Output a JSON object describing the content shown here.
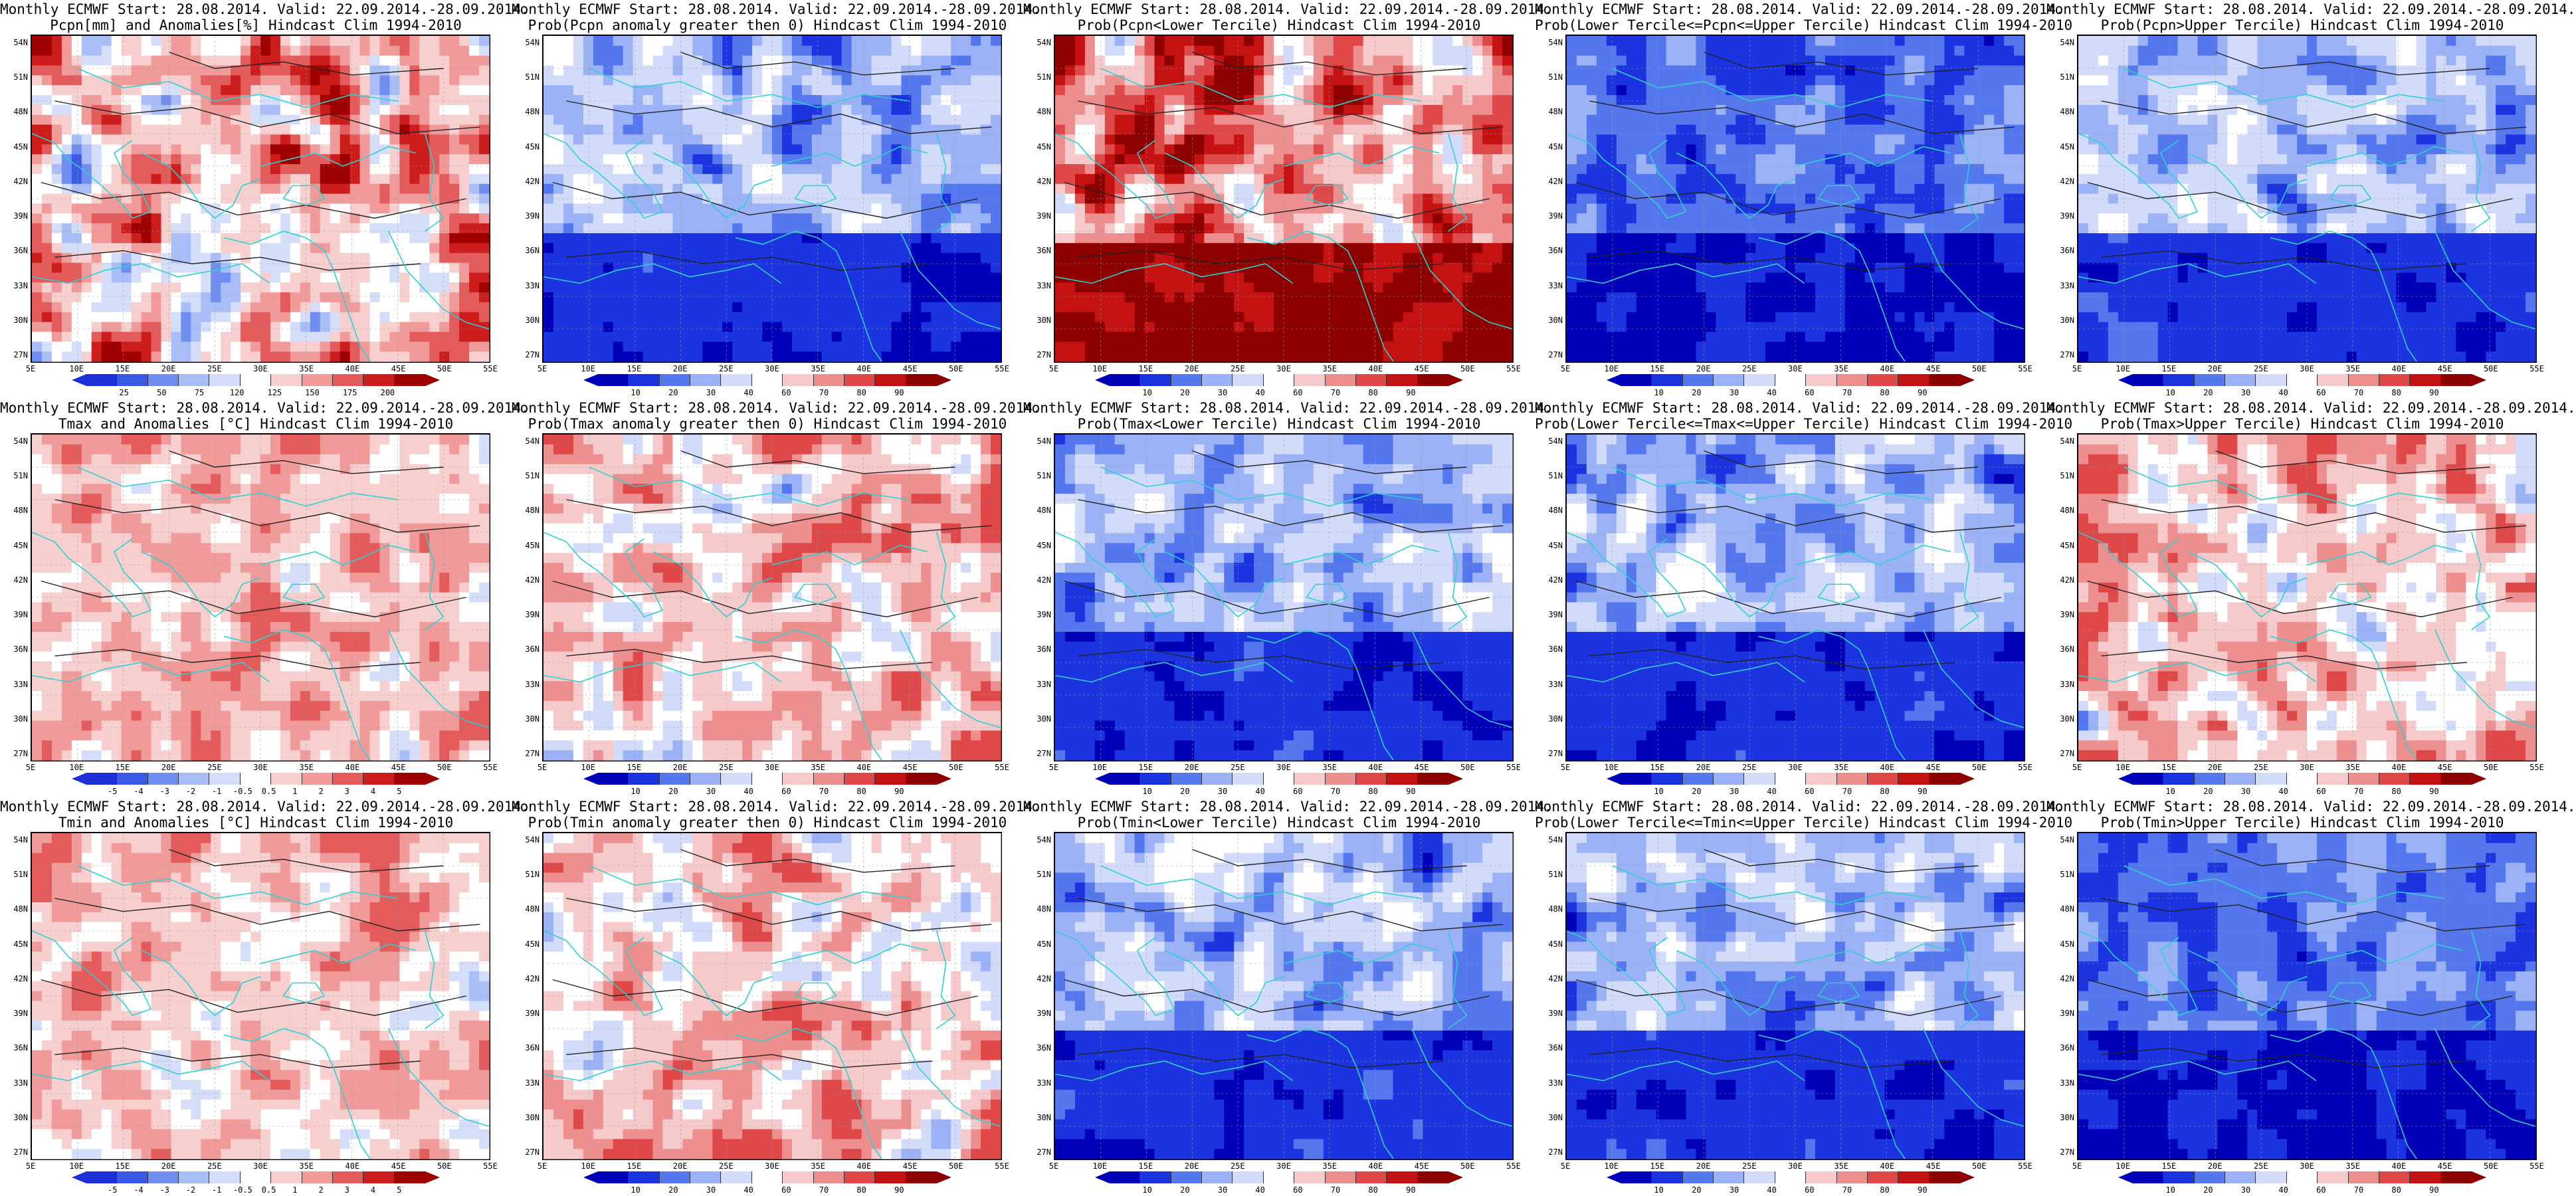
{
  "panels": [
    {
      "row": 0,
      "col": 0,
      "line1": "Monthly ECMWF Start: 28.08.2014. Valid: 22.09.2014.-28.09.2014.",
      "line2": "Pcpn[mm] and Anomalies[%] Hindcast Clim 1994-2010",
      "scheme": "anom-pcpn",
      "ticks": [
        "25",
        "50",
        "75",
        "120",
        "125",
        "150",
        "175",
        "200"
      ],
      "palette": [
        "#1d2fd6",
        "#3a5ae6",
        "#6f8ef0",
        "#a9bdf7",
        "#d4def9",
        "#ffffff",
        "#f7cfcf",
        "#f09a9a",
        "#e35b5b",
        "#cc1d1d",
        "#9e0000"
      ]
    },
    {
      "row": 0,
      "col": 1,
      "line1": "Monthly ECMWF Start: 28.08.2014. Valid: 22.09.2014.-28.09.2014.",
      "line2": "Prob(Pcpn anomaly greater then 0) Hindcast Clim 1994-2010",
      "scheme": "prob-blue",
      "ticks": [
        "10",
        "20",
        "30",
        "40",
        "60",
        "70",
        "80",
        "90"
      ],
      "palette": [
        "#0000b8",
        "#1c34e0",
        "#5577ee",
        "#9bb2f6",
        "#d2dcfa",
        "#ffffff",
        "#f6caca",
        "#ee8f8f",
        "#de4848",
        "#c41212",
        "#8c0000"
      ]
    },
    {
      "row": 0,
      "col": 2,
      "line1": "Monthly ECMWF Start: 28.08.2014. Valid: 22.09.2014.-28.09.2014.",
      "line2": "Prob(Pcpn<Lower Tercile) Hindcast Clim 1994-2010",
      "scheme": "prob-red",
      "ticks": [
        "10",
        "20",
        "30",
        "40",
        "60",
        "70",
        "80",
        "90"
      ],
      "palette": [
        "#0000b8",
        "#1c34e0",
        "#5577ee",
        "#9bb2f6",
        "#d2dcfa",
        "#ffffff",
        "#f6caca",
        "#ee8f8f",
        "#de4848",
        "#c41212",
        "#8c0000"
      ]
    },
    {
      "row": 0,
      "col": 3,
      "line1": "Monthly ECMWF Start: 28.08.2014. Valid: 22.09.2014.-28.09.2014.",
      "line2": "Prob(Lower Tercile<=Pcpn<=Upper Tercile) Hindcast Clim 1994-2010",
      "scheme": "prob-deepblue",
      "ticks": [
        "10",
        "20",
        "30",
        "40",
        "60",
        "70",
        "80",
        "90"
      ],
      "palette": [
        "#0000b8",
        "#1c34e0",
        "#5577ee",
        "#9bb2f6",
        "#d2dcfa",
        "#ffffff",
        "#f6caca",
        "#ee8f8f",
        "#de4848",
        "#c41212",
        "#8c0000"
      ]
    },
    {
      "row": 0,
      "col": 4,
      "line1": "Monthly ECMWF Start: 28.08.2014. Valid: 22.09.2014.-28.09.2014.",
      "line2": "Prob(Pcpn>Upper Tercile) Hindcast Clim 1994-2010",
      "scheme": "prob-blue",
      "ticks": [
        "10",
        "20",
        "30",
        "40",
        "60",
        "70",
        "80",
        "90"
      ],
      "palette": [
        "#0000b8",
        "#1c34e0",
        "#5577ee",
        "#9bb2f6",
        "#d2dcfa",
        "#ffffff",
        "#f6caca",
        "#ee8f8f",
        "#de4848",
        "#c41212",
        "#8c0000"
      ]
    },
    {
      "row": 1,
      "col": 0,
      "line1": "Monthly ECMWF Start: 28.08.2014. Valid: 22.09.2014.-28.09.2014.",
      "line2": "Tmax and Anomalies [°C] Hindcast Clim 1994-2010",
      "scheme": "anom-temp",
      "ticks": [
        "-5",
        "-4",
        "-3",
        "-2",
        "-1",
        "-0.5",
        "0.5",
        "1",
        "2",
        "3",
        "4",
        "5"
      ],
      "palette": [
        "#1d2fd6",
        "#3a5ae6",
        "#6f8ef0",
        "#a9bdf7",
        "#d4def9",
        "#ffffff",
        "#f7cfcf",
        "#f09a9a",
        "#e35b5b",
        "#cc1d1d",
        "#9e0000"
      ]
    },
    {
      "row": 1,
      "col": 1,
      "line1": "Monthly ECMWF Start: 28.08.2014. Valid: 22.09.2014.-28.09.2014.",
      "line2": "Prob(Tmax anomaly greater then 0) Hindcast Clim 1994-2010",
      "scheme": "prob-mixed",
      "ticks": [
        "10",
        "20",
        "30",
        "40",
        "60",
        "70",
        "80",
        "90"
      ],
      "palette": [
        "#0000b8",
        "#1c34e0",
        "#5577ee",
        "#9bb2f6",
        "#d2dcfa",
        "#ffffff",
        "#f6caca",
        "#ee8f8f",
        "#de4848",
        "#c41212",
        "#8c0000"
      ]
    },
    {
      "row": 1,
      "col": 2,
      "line1": "Monthly ECMWF Start: 28.08.2014. Valid: 22.09.2014.-28.09.2014.",
      "line2": "Prob(Tmax<Lower Tercile) Hindcast Clim 1994-2010",
      "scheme": "prob-blue",
      "ticks": [
        "10",
        "20",
        "30",
        "40",
        "60",
        "70",
        "80",
        "90"
      ],
      "palette": [
        "#0000b8",
        "#1c34e0",
        "#5577ee",
        "#9bb2f6",
        "#d2dcfa",
        "#ffffff",
        "#f6caca",
        "#ee8f8f",
        "#de4848",
        "#c41212",
        "#8c0000"
      ]
    },
    {
      "row": 1,
      "col": 3,
      "line1": "Monthly ECMWF Start: 28.08.2014. Valid: 22.09.2014.-28.09.2014.",
      "line2": "Prob(Lower Tercile<=Tmax<=Upper Tercile) Hindcast Clim 1994-2010",
      "scheme": "prob-blue",
      "ticks": [
        "10",
        "20",
        "30",
        "40",
        "60",
        "70",
        "80",
        "90"
      ],
      "palette": [
        "#0000b8",
        "#1c34e0",
        "#5577ee",
        "#9bb2f6",
        "#d2dcfa",
        "#ffffff",
        "#f6caca",
        "#ee8f8f",
        "#de4848",
        "#c41212",
        "#8c0000"
      ]
    },
    {
      "row": 1,
      "col": 4,
      "line1": "Monthly ECMWF Start: 28.08.2014. Valid: 22.09.2014.-28.09.2014.",
      "line2": "Prob(Tmax>Upper Tercile) Hindcast Clim 1994-2010",
      "scheme": "prob-mixed",
      "ticks": [
        "10",
        "20",
        "30",
        "40",
        "60",
        "70",
        "80",
        "90"
      ],
      "palette": [
        "#0000b8",
        "#1c34e0",
        "#5577ee",
        "#9bb2f6",
        "#d2dcfa",
        "#ffffff",
        "#f6caca",
        "#ee8f8f",
        "#de4848",
        "#c41212",
        "#8c0000"
      ]
    },
    {
      "row": 2,
      "col": 0,
      "line1": "Monthly ECMWF Start: 28.08.2014. Valid: 22.09.2014.-28.09.2014.",
      "line2": "Tmin and Anomalies [°C] Hindcast Clim 1994-2010",
      "scheme": "anom-temp",
      "ticks": [
        "-5",
        "-4",
        "-3",
        "-2",
        "-1",
        "-0.5",
        "0.5",
        "1",
        "2",
        "3",
        "4",
        "5"
      ],
      "palette": [
        "#1d2fd6",
        "#3a5ae6",
        "#6f8ef0",
        "#a9bdf7",
        "#d4def9",
        "#ffffff",
        "#f7cfcf",
        "#f09a9a",
        "#e35b5b",
        "#cc1d1d",
        "#9e0000"
      ]
    },
    {
      "row": 2,
      "col": 1,
      "line1": "Monthly ECMWF Start: 28.08.2014. Valid: 22.09.2014.-28.09.2014.",
      "line2": "Prob(Tmin anomaly greater then 0) Hindcast Clim 1994-2010",
      "scheme": "prob-mixed",
      "ticks": [
        "10",
        "20",
        "30",
        "40",
        "60",
        "70",
        "80",
        "90"
      ],
      "palette": [
        "#0000b8",
        "#1c34e0",
        "#5577ee",
        "#9bb2f6",
        "#d2dcfa",
        "#ffffff",
        "#f6caca",
        "#ee8f8f",
        "#de4848",
        "#c41212",
        "#8c0000"
      ]
    },
    {
      "row": 2,
      "col": 2,
      "line1": "Monthly ECMWF Start: 28.08.2014. Valid: 22.09.2014.-28.09.2014.",
      "line2": "Prob(Tmin<Lower Tercile) Hindcast Clim 1994-2010",
      "scheme": "prob-blue",
      "ticks": [
        "10",
        "20",
        "30",
        "40",
        "60",
        "70",
        "80",
        "90"
      ],
      "palette": [
        "#0000b8",
        "#1c34e0",
        "#5577ee",
        "#9bb2f6",
        "#d2dcfa",
        "#ffffff",
        "#f6caca",
        "#ee8f8f",
        "#de4848",
        "#c41212",
        "#8c0000"
      ]
    },
    {
      "row": 2,
      "col": 3,
      "line1": "Monthly ECMWF Start: 28.08.2014. Valid: 22.09.2014.-28.09.2014.",
      "line2": "Prob(Lower Tercile<=Tmin<=Upper Tercile) Hindcast Clim 1994-2010",
      "scheme": "prob-blue",
      "ticks": [
        "10",
        "20",
        "30",
        "40",
        "60",
        "70",
        "80",
        "90"
      ],
      "palette": [
        "#0000b8",
        "#1c34e0",
        "#5577ee",
        "#9bb2f6",
        "#d2dcfa",
        "#ffffff",
        "#f6caca",
        "#ee8f8f",
        "#de4848",
        "#c41212",
        "#8c0000"
      ]
    },
    {
      "row": 2,
      "col": 4,
      "line1": "Monthly ECMWF Start: 28.08.2014. Valid: 22.09.2014.-28.09.2014.",
      "line2": "Prob(Tmin>Upper Tercile) Hindcast Clim 1994-2010",
      "scheme": "prob-deepblue",
      "ticks": [
        "10",
        "20",
        "30",
        "40",
        "60",
        "70",
        "80",
        "90"
      ],
      "palette": [
        "#0000b8",
        "#1c34e0",
        "#5577ee",
        "#9bb2f6",
        "#d2dcfa",
        "#ffffff",
        "#f6caca",
        "#ee8f8f",
        "#de4848",
        "#c41212",
        "#8c0000"
      ]
    }
  ],
  "lat_labels": [
    "54N",
    "51N",
    "48N",
    "45N",
    "42N",
    "39N",
    "36N",
    "33N",
    "30N",
    "27N"
  ],
  "lon_labels": [
    "5E",
    "10E",
    "15E",
    "20E",
    "25E",
    "30E",
    "35E",
    "40E",
    "45E",
    "50E",
    "55E"
  ],
  "colors": {
    "coast": "#2fd0d0",
    "contour": "#222222",
    "frame": "#000000"
  }
}
